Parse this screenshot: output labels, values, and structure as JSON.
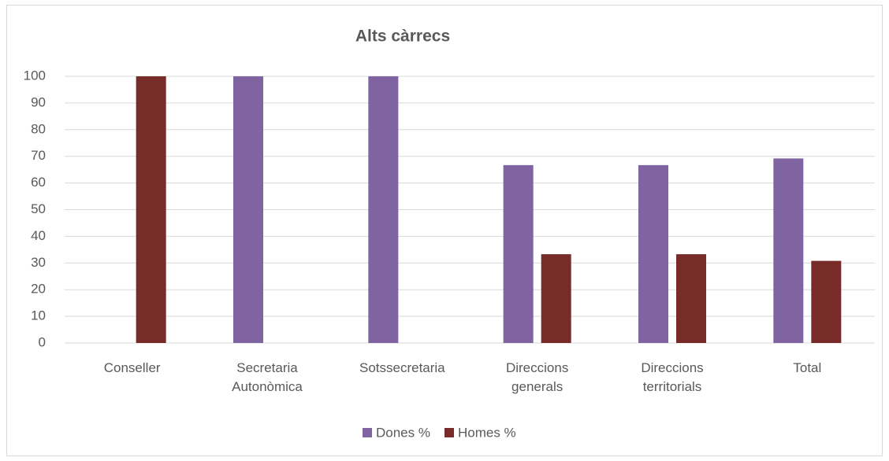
{
  "chart_data": {
    "type": "bar",
    "title": "Alts càrrecs",
    "categories": [
      "Conseller",
      "Secretaria Autonòmica",
      "Sotssecretaria",
      "Direccions generals",
      "Direccions territorials",
      "Total"
    ],
    "series": [
      {
        "name": "Dones %",
        "color": "#8064a2",
        "values": [
          0,
          100,
          100,
          66.7,
          66.7,
          69.2
        ]
      },
      {
        "name": "Homes %",
        "color": "#772c2a",
        "values": [
          100,
          0,
          0,
          33.3,
          33.3,
          30.8
        ]
      }
    ],
    "ylim": [
      0,
      100
    ],
    "yticks": [
      0,
      10,
      20,
      30,
      40,
      50,
      60,
      70,
      80,
      90,
      100
    ],
    "grid": true,
    "legend": "bottom"
  }
}
